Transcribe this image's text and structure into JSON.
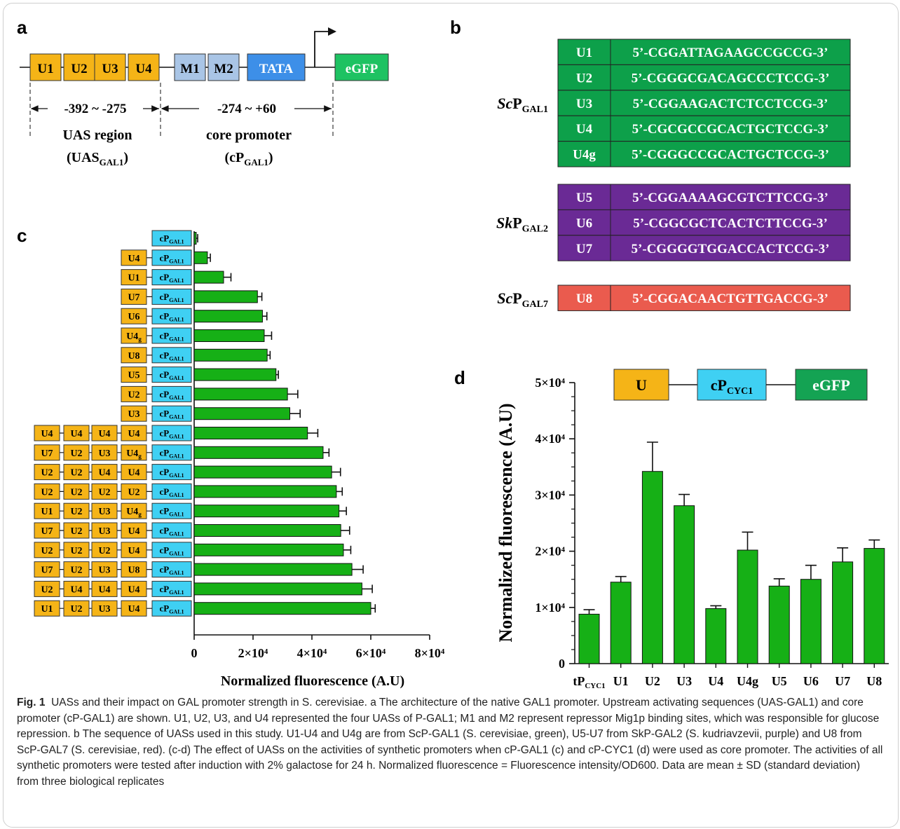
{
  "panel_labels": {
    "a": "a",
    "b": "b",
    "c": "c",
    "d": "d"
  },
  "panel_a": {
    "uas": [
      "U1",
      "U2",
      "U3",
      "U4"
    ],
    "repressors": [
      "M1",
      "M2"
    ],
    "tata": "TATA",
    "reporter": "eGFP",
    "uas_range": "-392 ~ -275",
    "core_range": "-274 ~ +60",
    "uas_label": "UAS region",
    "uas_abbr": "UAS",
    "uas_sub": "GAL1",
    "core_label": "core promoter",
    "core_abbr": "cP",
    "core_sub": "GAL1"
  },
  "panel_b": {
    "groups": [
      {
        "name": "Sc",
        "base": "P",
        "sub": "GAL1",
        "color": "#0da04a",
        "rows": [
          {
            "id": "U1",
            "seq": "5’-CGGATTAGAAGCCGCCG-3’"
          },
          {
            "id": "U2",
            "seq": "5’-CGGGCGACAGCCCTCCG-3’"
          },
          {
            "id": "U3",
            "seq": "5’-CGGAAGACTCTCCTCCG-3’"
          },
          {
            "id": "U4",
            "seq": "5’-CGCGCCGCACTGCTCCG-3’"
          },
          {
            "id": "U4g",
            "seq": "5’-CGGGCCGCACTGCTCCG-3’"
          }
        ]
      },
      {
        "name": "Sk",
        "base": "P",
        "sub": "GAL2",
        "color": "#6a2a95",
        "rows": [
          {
            "id": "U5",
            "seq": "5’-CGGAAAAGCGTCTTCCG-3’"
          },
          {
            "id": "U6",
            "seq": "5’-CGGCGCTCACTCTTCCG-3’"
          },
          {
            "id": "U7",
            "seq": "5’-CGGGGTGGACCACTCCG-3’"
          }
        ]
      },
      {
        "name": "Sc",
        "base": "P",
        "sub": "GAL7",
        "color": "#ea5b4e",
        "rows": [
          {
            "id": "U8",
            "seq": "5’-CGGACAACTGTTGACCG-3’"
          }
        ]
      }
    ]
  },
  "chart_data": [
    {
      "type": "bar",
      "orientation": "horizontal",
      "core_promoter_label": "cP",
      "core_promoter_sub": "GAL1",
      "xlabel": "Normalized fluorescence (A.U)",
      "xticks": [
        "0",
        "2×10⁴",
        "4×10⁴",
        "6×10⁴",
        "8×10⁴"
      ],
      "xlim": [
        0,
        80000
      ],
      "bar_color": "#16b016",
      "categories": [
        [],
        [
          "U4"
        ],
        [
          "U1"
        ],
        [
          "U7"
        ],
        [
          "U6"
        ],
        [
          "U4g"
        ],
        [
          "U8"
        ],
        [
          "U5"
        ],
        [
          "U2"
        ],
        [
          "U3"
        ],
        [
          "U4",
          "U4",
          "U4",
          "U4"
        ],
        [
          "U7",
          "U2",
          "U3",
          "U4g"
        ],
        [
          "U2",
          "U2",
          "U4",
          "U4"
        ],
        [
          "U2",
          "U2",
          "U2",
          "U2"
        ],
        [
          "U1",
          "U2",
          "U3",
          "U4g"
        ],
        [
          "U7",
          "U2",
          "U3",
          "U4"
        ],
        [
          "U2",
          "U2",
          "U2",
          "U4"
        ],
        [
          "U7",
          "U2",
          "U3",
          "U8"
        ],
        [
          "U2",
          "U4",
          "U4",
          "U4"
        ],
        [
          "U1",
          "U2",
          "U3",
          "U4"
        ]
      ],
      "values": [
        700,
        4500,
        10000,
        21500,
        23200,
        23800,
        24800,
        27800,
        31700,
        32500,
        38500,
        43800,
        46700,
        48300,
        49200,
        49800,
        50700,
        53600,
        57000,
        60000
      ],
      "errors": [
        500,
        1000,
        2500,
        1500,
        1500,
        2500,
        1000,
        800,
        3500,
        3500,
        3500,
        2000,
        3000,
        2000,
        2500,
        3000,
        2500,
        3800,
        3500,
        1500
      ]
    },
    {
      "type": "bar",
      "ylabel": "Normalized fluorescence (A.U)",
      "yticks": [
        "0",
        "1×10⁴",
        "2×10⁴",
        "3×10⁴",
        "4×10⁴",
        "5×10⁴"
      ],
      "ylim": [
        0,
        50000
      ],
      "bar_color": "#16b016",
      "categories": [
        "tP",
        "U1",
        "U2",
        "U3",
        "U4",
        "U4g",
        "U5",
        "U6",
        "U7",
        "U8"
      ],
      "first_category_sub": "CYC1",
      "values": [
        8800,
        14500,
        34200,
        28100,
        9800,
        20200,
        13800,
        15000,
        18100,
        20500
      ],
      "errors": [
        800,
        1000,
        5200,
        2000,
        500,
        3200,
        1300,
        2500,
        2500,
        1500
      ],
      "construct": {
        "u": "U",
        "core": "cP",
        "core_sub": "CYC1",
        "reporter": "eGFP"
      }
    }
  ],
  "caption": {
    "fig": "Fig. 1",
    "title": "UASs and their impact on GAL promoter strength in S. cerevisiae.",
    "text": [
      "a The architecture of the native GAL1 promoter. Upstream activating sequences (UAS-GAL1) and core promoter (cP-GAL1) are shown. U1, U2, U3, and U4 represented the four UASs of P-GAL1; M1 and M2 represent repressor Mig1p binding sites, which was responsible for glucose repression.",
      "b The sequence of UASs used in this study. U1-U4 and U4g are from ScP-GAL1 (S. cerevisiae, green), U5-U7 from SkP-GAL2 (S. kudriavzevii, purple) and U8 from ScP-GAL7 (S. cerevisiae, red).",
      "(c-d) The effect of UASs on the activities of synthetic promoters when cP-GAL1 (c) and cP-CYC1 (d) were used as core promoter. The activities of all synthetic promoters were tested after induction with 2% galactose for 24 h. Normalized fluorescence = Fluorescence intensity/OD600. Data are mean ± SD (standard deviation) from three biological replicates"
    ]
  }
}
